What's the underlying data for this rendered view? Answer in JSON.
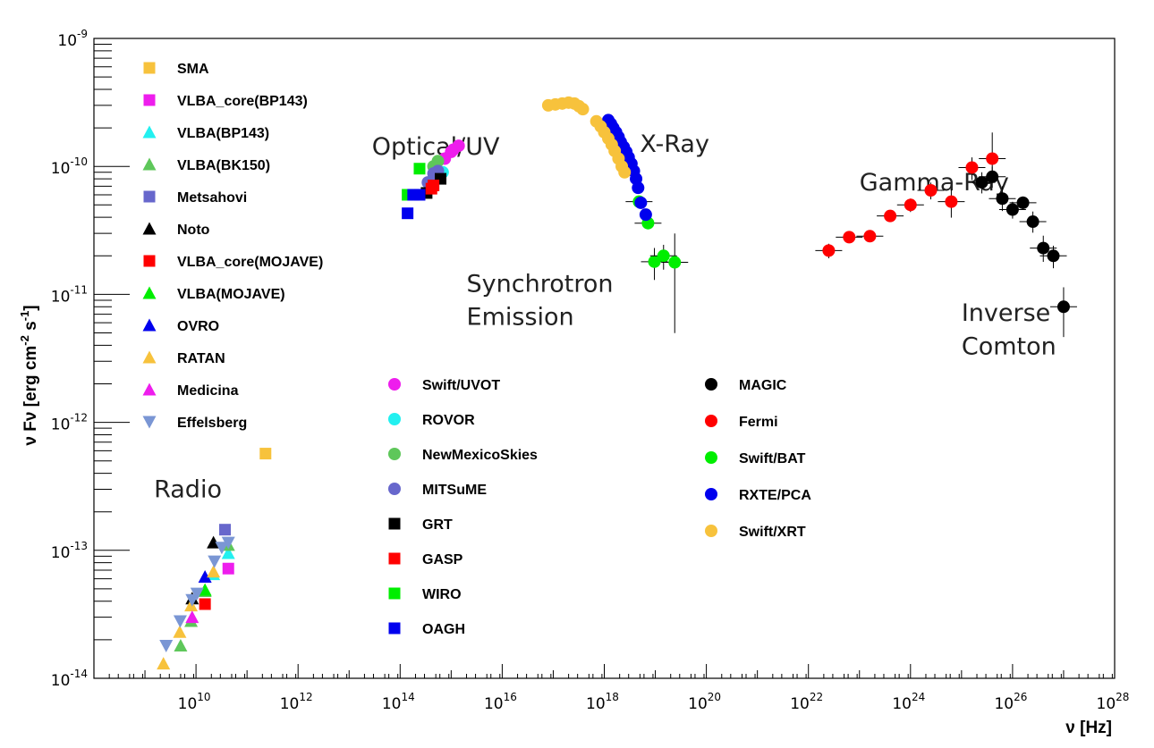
{
  "chart_data": {
    "type": "scatter",
    "log_x": true,
    "log_y": true,
    "xlim": [
      100000000.0,
      1e+28
    ],
    "ylim": [
      1e-14,
      1e-09
    ],
    "xlabel": "ν [Hz]",
    "ylabel_parts": {
      "a": "ν Fν [erg cm",
      "b": "-2",
      "c": " s",
      "d": "-1",
      "e": "]"
    },
    "x_ticks": [
      {
        "base": "10",
        "exp": "10",
        "value": 10000000000.0
      },
      {
        "base": "10",
        "exp": "12",
        "value": 1000000000000.0
      },
      {
        "base": "10",
        "exp": "14",
        "value": 100000000000000.0
      },
      {
        "base": "10",
        "exp": "16",
        "value": 1e+16
      },
      {
        "base": "10",
        "exp": "18",
        "value": 1e+18
      },
      {
        "base": "10",
        "exp": "20",
        "value": 1e+20
      },
      {
        "base": "10",
        "exp": "22",
        "value": 1e+22
      },
      {
        "base": "10",
        "exp": "24",
        "value": 1e+24
      },
      {
        "base": "10",
        "exp": "26",
        "value": 1e+26
      },
      {
        "base": "10",
        "exp": "28",
        "value": 1e+28
      }
    ],
    "y_ticks": [
      {
        "base": "10",
        "exp": "-14",
        "value": 1e-14
      },
      {
        "base": "10",
        "exp": "-13",
        "value": 1e-13
      },
      {
        "base": "10",
        "exp": "-12",
        "value": 1e-12
      },
      {
        "base": "10",
        "exp": "-11",
        "value": 1e-11
      },
      {
        "base": "10",
        "exp": "-10",
        "value": 1e-10
      },
      {
        "base": "10",
        "exp": "-9",
        "value": 1e-09
      }
    ],
    "annotations": [
      {
        "text": "Radio",
        "x": 1500000000.0,
        "y": 2.6e-13
      },
      {
        "text": "Optical/UV",
        "x": 28000000000000.0,
        "y": 1.24e-10
      },
      {
        "text": "X-Ray",
        "x": 5e+18,
        "y": 1.3e-10
      },
      {
        "text": "Gamma-Ray",
        "x": 1e+23,
        "y": 6.5e-11
      },
      {
        "text": "Synchrotron",
        "x": 2000000000000000.0,
        "y": 1.05e-11
      },
      {
        "text": "Emission",
        "x": 2000000000000000.0,
        "y": 5.8e-12
      },
      {
        "text": "Inverse",
        "x": 1e+25,
        "y": 6.2e-12
      },
      {
        "text": "Comton",
        "x": 1e+25,
        "y": 3.4e-12
      }
    ],
    "series": [
      {
        "name": "SMA",
        "marker": "square",
        "color": "#f7c23c",
        "points": [
          [
            230000000000.0,
            5.7e-13
          ]
        ]
      },
      {
        "name": "VLBA_core(BP143)",
        "marker": "square",
        "color": "#ee1ded",
        "points": [
          [
            43000000000.0,
            7.2e-14
          ]
        ]
      },
      {
        "name": "VLBA(BP143)",
        "marker": "triangle",
        "color": "#22f0f0",
        "points": [
          [
            43000000000.0,
            9.5e-14
          ],
          [
            22000000000.0,
            6.5e-14
          ]
        ]
      },
      {
        "name": "VLBA(BK150)",
        "marker": "triangle",
        "color": "#5ec75a",
        "points": [
          [
            43000000000.0,
            1.1e-13
          ],
          [
            8000000000.0,
            2.8e-14
          ],
          [
            5000000000.0,
            1.8e-14
          ],
          [
            15000000000.0,
            4.8e-14
          ]
        ]
      },
      {
        "name": "Metsahovi",
        "marker": "square",
        "color": "#6767cc",
        "points": [
          [
            37000000000.0,
            1.45e-13
          ]
        ]
      },
      {
        "name": "Noto",
        "marker": "triangle",
        "color": "#000000",
        "points": [
          [
            22000000000.0,
            1.15e-13
          ],
          [
            8400000000.0,
            4.2e-14
          ]
        ]
      },
      {
        "name": "VLBA_core(MOJAVE)",
        "marker": "square",
        "color": "#ff0000",
        "points": [
          [
            15000000000.0,
            3.8e-14
          ]
        ]
      },
      {
        "name": "VLBA(MOJAVE)",
        "marker": "triangle",
        "color": "#00ee00",
        "points": [
          [
            15000000000.0,
            4.9e-14
          ]
        ]
      },
      {
        "name": "OVRO",
        "marker": "triangle",
        "color": "#0000ee",
        "points": [
          [
            15000000000.0,
            6.2e-14
          ]
        ]
      },
      {
        "name": "RATAN",
        "marker": "triangle",
        "color": "#f7c23c",
        "points": [
          [
            2300000000.0,
            1.3e-14
          ],
          [
            4800000000.0,
            2.3e-14
          ],
          [
            8000000000.0,
            3.7e-14
          ],
          [
            22000000000.0,
            6.8e-14
          ]
        ]
      },
      {
        "name": "Medicina",
        "marker": "triangle",
        "color": "#ee1ded",
        "points": [
          [
            8400000000.0,
            3e-14
          ]
        ]
      },
      {
        "name": "Effelsberg",
        "marker": "triangle-down",
        "color": "#7a96d4",
        "points": [
          [
            2600000000.0,
            1.8e-14
          ],
          [
            4900000000.0,
            2.8e-14
          ],
          [
            8400000000.0,
            4.1e-14
          ],
          [
            10500000000.0,
            4.6e-14
          ],
          [
            23000000000.0,
            8.2e-14
          ],
          [
            32000000000.0,
            1.05e-13
          ],
          [
            43000000000.0,
            1.15e-13
          ]
        ]
      },
      {
        "name": "Swift/UVOT",
        "marker": "circle",
        "color": "#ee1ded",
        "points": [
          [
            750000000000000.0,
            1.15e-10
          ],
          [
            1100000000000000.0,
            1.35e-10
          ],
          [
            1400000000000000.0,
            1.45e-10
          ],
          [
            1000000000000000.0,
            1.3e-10
          ]
        ]
      },
      {
        "name": "ROVOR",
        "marker": "circle",
        "color": "#22f0f0",
        "points": [
          [
            680000000000000.0,
            9e-11
          ],
          [
            500000000000000.0,
            8.8e-11
          ]
        ]
      },
      {
        "name": "NewMexicoSkies",
        "marker": "circle",
        "color": "#5ec75a",
        "points": [
          [
            550000000000000.0,
            1.1e-10
          ],
          [
            450000000000000.0,
            1e-10
          ]
        ]
      },
      {
        "name": "MITSuME",
        "marker": "circle",
        "color": "#6767cc",
        "points": [
          [
            350000000000000.0,
            7.5e-11
          ],
          [
            450000000000000.0,
            8.8e-11
          ],
          [
            550000000000000.0,
            9.2e-11
          ]
        ]
      },
      {
        "name": "GRT",
        "marker": "square",
        "color": "#000000",
        "points": [
          [
            330000000000000.0,
            6.2e-11
          ],
          [
            450000000000000.0,
            7.1e-11
          ],
          [
            620000000000000.0,
            8e-11
          ]
        ]
      },
      {
        "name": "GASP",
        "marker": "square",
        "color": "#ff0000",
        "points": [
          [
            410000000000000.0,
            6.7e-11
          ],
          [
            450000000000000.0,
            7.1e-11
          ]
        ]
      },
      {
        "name": "WIRO",
        "marker": "square",
        "color": "#00ee00",
        "points": [
          [
            140000000000000.0,
            6e-11
          ],
          [
            240000000000000.0,
            9.6e-11
          ]
        ]
      },
      {
        "name": "OAGH",
        "marker": "square",
        "color": "#0000ee",
        "points": [
          [
            140000000000000.0,
            4.3e-11
          ],
          [
            180000000000000.0,
            6e-11
          ],
          [
            240000000000000.0,
            6e-11
          ]
        ]
      },
      {
        "name": "MAGIC",
        "marker": "circle",
        "color": "#000000",
        "points": [
          [
            2.5e+25,
            7.5e-11,
            0.82,
            1.2
          ],
          [
            4e+25,
            8.3e-11,
            0.82,
            1.2
          ],
          [
            6.3e+25,
            5.6e-11,
            0.8,
            1.25
          ],
          [
            1e+26,
            4.6e-11,
            0.85,
            1.15
          ],
          [
            1.6e+26,
            5.2e-11,
            0.88,
            1.12
          ],
          [
            2.5e+26,
            3.7e-11,
            0.82,
            1.2
          ],
          [
            4e+26,
            2.3e-11,
            0.78,
            1.25
          ],
          [
            6.3e+26,
            2e-11,
            0.8,
            1.2
          ],
          [
            1e+27,
            8e-12,
            0.58,
            1.42
          ]
        ]
      },
      {
        "name": "Fermi",
        "marker": "circle",
        "color": "#ff0000",
        "points": [
          [
            2.5e+22,
            2.2e-11,
            0.87,
            1.13
          ],
          [
            6.3e+22,
            2.8e-11,
            0.95,
            1.05
          ],
          [
            1.6e+23,
            2.85e-11,
            0.95,
            1.05
          ],
          [
            4e+23,
            4.1e-11,
            0.9,
            1.1
          ],
          [
            1e+24,
            5e-11,
            0.88,
            1.12
          ],
          [
            2.5e+24,
            6.5e-11,
            0.85,
            1.15
          ],
          [
            6.3e+24,
            5.3e-11,
            0.75,
            1.25
          ],
          [
            1.6e+25,
            9.8e-11,
            0.8,
            1.2
          ],
          [
            4e+25,
            1.15e-10,
            0.7,
            1.6
          ]
        ]
      },
      {
        "name": "Swift/BAT",
        "marker": "circle",
        "color": "#00ee00",
        "points": [
          [
            4.8e+18,
            5.3e-11,
            0.92,
            1.08
          ],
          [
            7.2e+18,
            3.6e-11,
            0.92,
            1.08
          ],
          [
            9.6e+18,
            1.8e-11,
            0.72,
            1.28
          ],
          [
            1.45e+19,
            2e-11,
            0.78,
            1.22
          ],
          [
            2.4e+19,
            1.78e-11,
            0.28,
            1.68
          ]
        ]
      },
      {
        "name": "RXTE/PCA",
        "marker": "circle",
        "color": "#0000ee",
        "points": [
          [
            1.2e+18,
            2.3e-10
          ],
          [
            1.35e+18,
            2.15e-10
          ],
          [
            1.5e+18,
            2e-10
          ],
          [
            1.7e+18,
            1.85e-10
          ],
          [
            1.9e+18,
            1.7e-10
          ],
          [
            2.1e+18,
            1.55e-10
          ],
          [
            2.4e+18,
            1.42e-10
          ],
          [
            2.7e+18,
            1.3e-10
          ],
          [
            3e+18,
            1.18e-10
          ],
          [
            3.4e+18,
            1.05e-10
          ],
          [
            3.8e+18,
            9.2e-11
          ],
          [
            4.2e+18,
            8e-11
          ],
          [
            4.6e+18,
            6.8e-11
          ],
          [
            5.2e+18,
            5.2e-11
          ],
          [
            6.5e+18,
            4.2e-11
          ]
        ]
      },
      {
        "name": "Swift/XRT",
        "marker": "circle",
        "color": "#f7c23c",
        "points": [
          [
            8e+16,
            3e-10
          ],
          [
            1.1e+17,
            3.05e-10
          ],
          [
            1.5e+17,
            3.1e-10
          ],
          [
            2e+17,
            3.15e-10
          ],
          [
            2.6e+17,
            3.1e-10
          ],
          [
            3.2e+17,
            2.95e-10
          ],
          [
            3.8e+17,
            2.8e-10
          ],
          [
            7e+17,
            2.25e-10
          ],
          [
            8.5e+17,
            2.05e-10
          ],
          [
            1e+18,
            1.85e-10
          ],
          [
            1.2e+18,
            1.65e-10
          ],
          [
            1.4e+18,
            1.48e-10
          ],
          [
            1.6e+18,
            1.32e-10
          ],
          [
            1.9e+18,
            1.15e-10
          ],
          [
            2.2e+18,
            1e-10
          ],
          [
            2.5e+18,
            9e-11
          ]
        ]
      }
    ],
    "legends": [
      {
        "id": "radio",
        "entries": [
          {
            "label": "SMA",
            "marker": "square",
            "color": "#f7c23c"
          },
          {
            "label": "VLBA_core(BP143)",
            "marker": "square",
            "color": "#ee1ded"
          },
          {
            "label": "VLBA(BP143)",
            "marker": "triangle",
            "color": "#22f0f0"
          },
          {
            "label": "VLBA(BK150)",
            "marker": "triangle",
            "color": "#5ec75a"
          },
          {
            "label": "Metsahovi",
            "marker": "square",
            "color": "#6767cc"
          },
          {
            "label": "Noto",
            "marker": "triangle",
            "color": "#000000"
          },
          {
            "label": "VLBA_core(MOJAVE)",
            "marker": "square",
            "color": "#ff0000"
          },
          {
            "label": "VLBA(MOJAVE)",
            "marker": "triangle",
            "color": "#00ee00"
          },
          {
            "label": "OVRO",
            "marker": "triangle",
            "color": "#0000ee"
          },
          {
            "label": "RATAN",
            "marker": "triangle",
            "color": "#f7c23c"
          },
          {
            "label": "Medicina",
            "marker": "triangle",
            "color": "#ee1ded"
          },
          {
            "label": "Effelsberg",
            "marker": "triangle-down",
            "color": "#7a96d4"
          }
        ]
      },
      {
        "id": "optical",
        "entries": [
          {
            "label": "Swift/UVOT",
            "marker": "circle",
            "color": "#ee1ded"
          },
          {
            "label": "ROVOR",
            "marker": "circle",
            "color": "#22f0f0"
          },
          {
            "label": "NewMexicoSkies",
            "marker": "circle",
            "color": "#5ec75a"
          },
          {
            "label": "MITSuME",
            "marker": "circle",
            "color": "#6767cc"
          },
          {
            "label": "GRT",
            "marker": "square",
            "color": "#000000"
          },
          {
            "label": "GASP",
            "marker": "square",
            "color": "#ff0000"
          },
          {
            "label": "WIRO",
            "marker": "square",
            "color": "#00ee00"
          },
          {
            "label": "OAGH",
            "marker": "square",
            "color": "#0000ee"
          }
        ]
      },
      {
        "id": "highenergy",
        "entries": [
          {
            "label": "MAGIC",
            "marker": "circle",
            "color": "#000000"
          },
          {
            "label": "Fermi",
            "marker": "circle",
            "color": "#ff0000"
          },
          {
            "label": "Swift/BAT",
            "marker": "circle",
            "color": "#00ee00"
          },
          {
            "label": "RXTE/PCA",
            "marker": "circle",
            "color": "#0000ee"
          },
          {
            "label": "Swift/XRT",
            "marker": "circle",
            "color": "#f7c23c"
          }
        ]
      }
    ]
  }
}
